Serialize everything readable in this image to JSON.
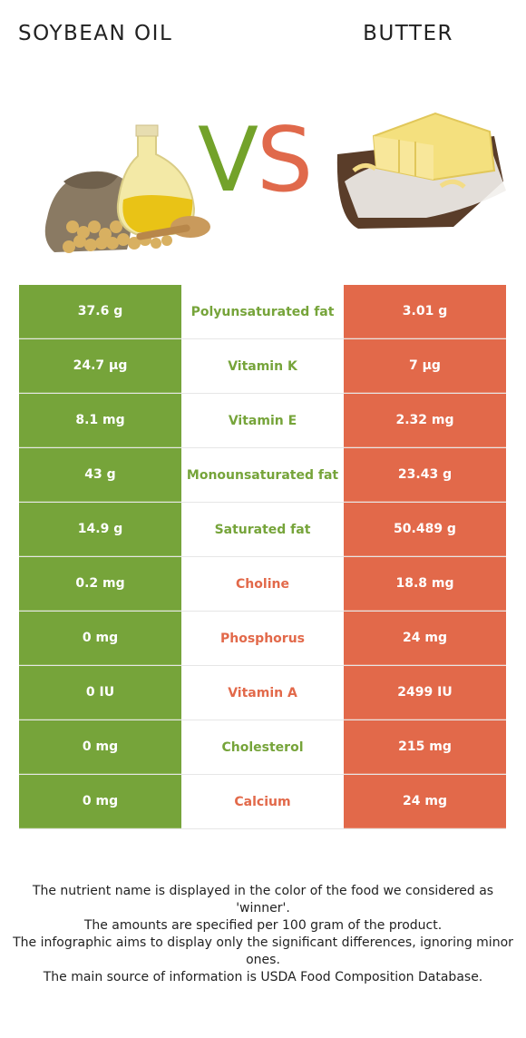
{
  "header": {
    "left_title": "SOYBEAN OIL",
    "right_title": "BUTTER",
    "vs_v": "V",
    "vs_s": "S"
  },
  "colors": {
    "left_food": "#76a43a",
    "right_food": "#e2694a"
  },
  "rows": [
    {
      "left": "37.6 g",
      "nutrient": "Polyunsaturated fat",
      "right": "3.01 g",
      "winner": "left"
    },
    {
      "left": "24.7 µg",
      "nutrient": "Vitamin K",
      "right": "7 µg",
      "winner": "left"
    },
    {
      "left": "8.1 mg",
      "nutrient": "Vitamin E",
      "right": "2.32 mg",
      "winner": "left"
    },
    {
      "left": "43 g",
      "nutrient": "Monounsaturated fat",
      "right": "23.43 g",
      "winner": "left"
    },
    {
      "left": "14.9 g",
      "nutrient": "Saturated fat",
      "right": "50.489 g",
      "winner": "left"
    },
    {
      "left": "0.2 mg",
      "nutrient": "Choline",
      "right": "18.8 mg",
      "winner": "right"
    },
    {
      "left": "0 mg",
      "nutrient": "Phosphorus",
      "right": "24 mg",
      "winner": "right"
    },
    {
      "left": "0 IU",
      "nutrient": "Vitamin A",
      "right": "2499 IU",
      "winner": "right"
    },
    {
      "left": "0 mg",
      "nutrient": "Cholesterol",
      "right": "215 mg",
      "winner": "left"
    },
    {
      "left": "0 mg",
      "nutrient": "Calcium",
      "right": "24 mg",
      "winner": "right"
    }
  ],
  "footnote": {
    "line1": "The nutrient name is displayed in the color of the food we considered as 'winner'.",
    "line2": "The amounts are specified per 100 gram of the product.",
    "line3": "The infographic aims to display only the significant differences, ignoring minor ones.",
    "line4": "The main source of information is USDA Food Composition Database."
  }
}
